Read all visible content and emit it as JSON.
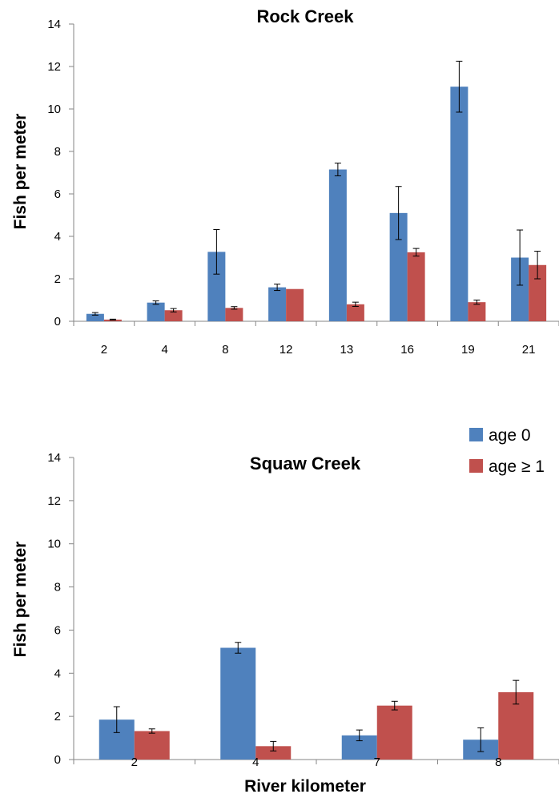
{
  "chart_data": [
    {
      "type": "bar",
      "title": "Rock Creek",
      "xlabel": "",
      "ylabel": "Fish per meter",
      "ylim": [
        0,
        14
      ],
      "yticks": [
        0,
        2,
        4,
        6,
        8,
        10,
        12,
        14
      ],
      "grid": false,
      "categories": [
        "2",
        "4",
        "8",
        "12",
        "13",
        "16",
        "19",
        "21"
      ],
      "series": [
        {
          "name": "age 0",
          "color": "#4f81bd",
          "values": [
            0.35,
            0.88,
            3.27,
            1.6,
            7.15,
            5.1,
            11.05,
            3.0
          ],
          "errors": [
            0.06,
            0.08,
            1.05,
            0.15,
            0.3,
            1.25,
            1.2,
            1.3
          ]
        },
        {
          "name": "age ≥ 1",
          "color": "#c0504d",
          "values": [
            0.08,
            0.52,
            0.63,
            1.52,
            0.8,
            3.25,
            0.9,
            2.65
          ],
          "errors": [
            0.02,
            0.08,
            0.06,
            0.0,
            0.1,
            0.18,
            0.1,
            0.65
          ]
        }
      ]
    },
    {
      "type": "bar",
      "title": "Squaw Creek",
      "xlabel": "River kilometer",
      "ylabel": "Fish per meter",
      "ylim": [
        0,
        14
      ],
      "yticks": [
        0,
        2,
        4,
        6,
        8,
        10,
        12,
        14
      ],
      "grid": false,
      "legend": {
        "placement": "top-right",
        "entries": [
          "age 0",
          "age ≥ 1"
        ]
      },
      "categories": [
        "2",
        "4",
        "7",
        "8"
      ],
      "series": [
        {
          "name": "age 0",
          "color": "#4f81bd",
          "values": [
            1.85,
            5.18,
            1.12,
            0.92
          ],
          "errors": [
            0.6,
            0.25,
            0.25,
            0.55
          ]
        },
        {
          "name": "age ≥ 1",
          "color": "#c0504d",
          "values": [
            1.32,
            0.62,
            2.5,
            3.12
          ],
          "errors": [
            0.1,
            0.22,
            0.2,
            0.55
          ]
        }
      ]
    }
  ]
}
